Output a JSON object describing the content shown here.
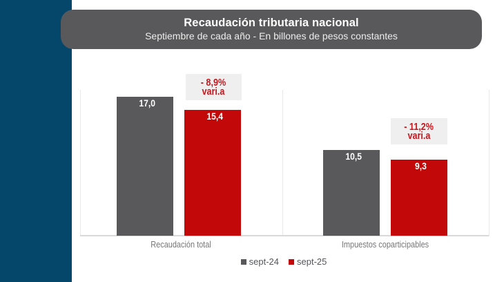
{
  "header": {
    "title": "Recaudación tributaria nacional",
    "subtitle": "Septiembre de cada año - En billones de pesos constantes"
  },
  "colors": {
    "side_accent": "#05466B",
    "header_bg": "#59595B",
    "series_gray": "#59595B",
    "series_red": "#C20808",
    "annotation_bg": "#F0EFEF",
    "annotation_text": "#C41920",
    "grid_line": "#E9E9E9",
    "axis_line": "#D9D9D9",
    "label_text": "#55565A",
    "category_text": "#767678",
    "value_text": "#FFFFFF"
  },
  "chart_data": {
    "type": "bar",
    "title": "Recaudación tributaria nacional",
    "subtitle": "Septiembre de cada año - En billones de pesos constantes",
    "categories": [
      "Recaudación total",
      "Impuestos coparticipables"
    ],
    "series": [
      {
        "name": "sept-24",
        "color": "#59595B",
        "values": [
          17.0,
          10.5
        ],
        "labels": [
          "17,0",
          "10,5"
        ]
      },
      {
        "name": "sept-25",
        "color": "#C20808",
        "values": [
          15.4,
          9.3
        ],
        "labels": [
          "15,4",
          "9,3"
        ]
      }
    ],
    "annotations": [
      {
        "category": "Recaudación total",
        "lines": [
          "- 8,9%",
          "vari.a"
        ]
      },
      {
        "category": "Impuestos coparticipables",
        "lines": [
          "- 11,2%",
          "vari.a"
        ]
      }
    ],
    "ylabel": "",
    "xlabel": "",
    "ylim": [
      0,
      17.9
    ],
    "grid": "category-boundary-vertical-lines",
    "legend_position": "bottom-center",
    "value_labels": "inside-top",
    "decimal_style": "comma"
  }
}
